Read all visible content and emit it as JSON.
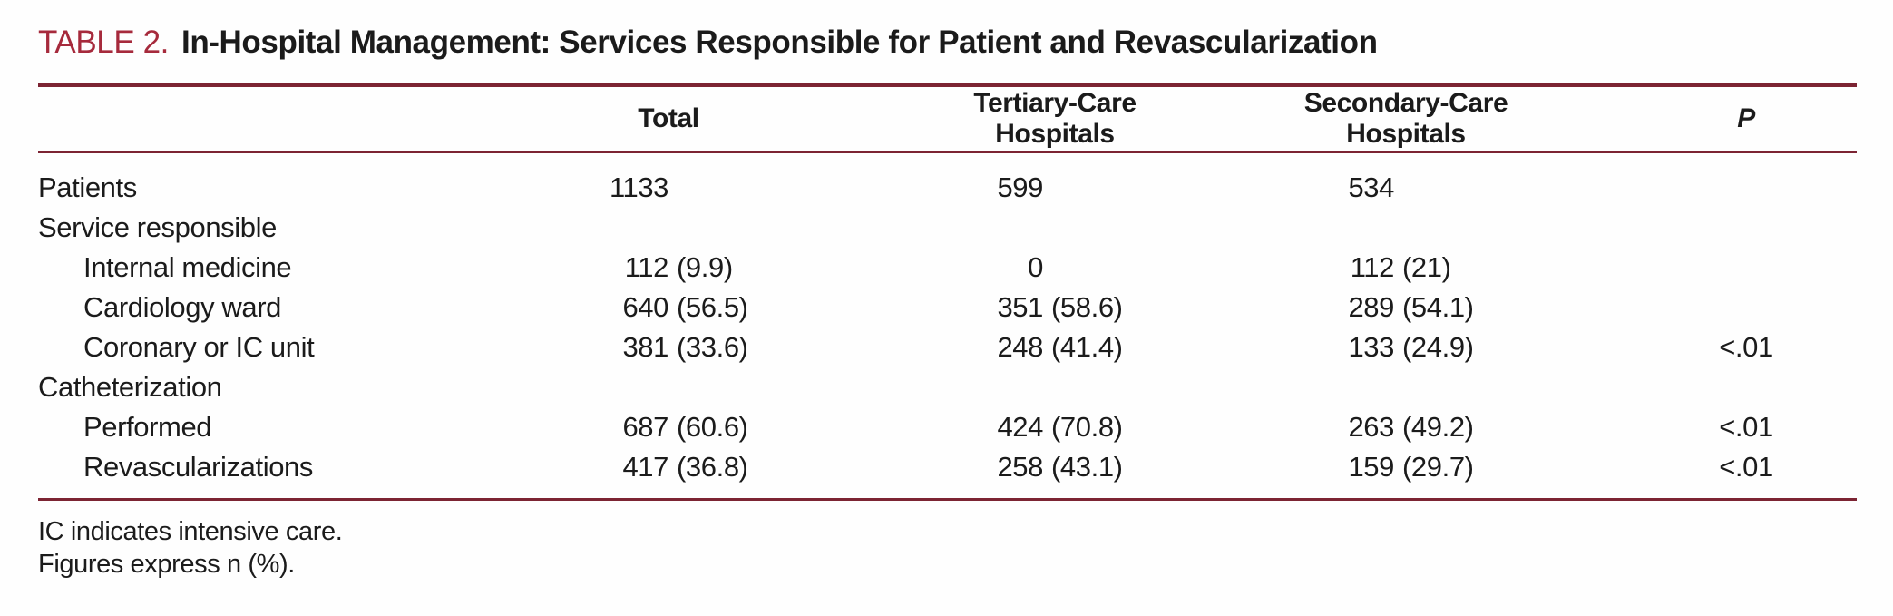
{
  "title": {
    "label": "TABLE 2.",
    "text": "In-Hospital Management: Services Responsible for Patient and Revascularization"
  },
  "colors": {
    "accent": "#a62a3c",
    "rule": "#7c2433",
    "text": "#1b1b1b"
  },
  "table": {
    "columns": {
      "total": "Total",
      "tertiary": "Tertiary-Care Hospitals",
      "secondary": "Secondary-Care Hospitals",
      "p": "P"
    },
    "rows": [
      {
        "label": "Patients",
        "total": {
          "n": "1133",
          "pct": ""
        },
        "tertiary": {
          "n": "599",
          "pct": ""
        },
        "secondary": {
          "n": "534",
          "pct": ""
        },
        "p": ""
      },
      {
        "label": "Service responsible",
        "total": {
          "n": "",
          "pct": ""
        },
        "tertiary": {
          "n": "",
          "pct": ""
        },
        "secondary": {
          "n": "",
          "pct": ""
        },
        "p": ""
      },
      {
        "label": "Internal medicine",
        "total": {
          "n": "112",
          "pct": "(9.9)"
        },
        "tertiary": {
          "n": "0",
          "pct": ""
        },
        "secondary": {
          "n": "112",
          "pct": "(21)"
        },
        "p": ""
      },
      {
        "label": "Cardiology ward",
        "total": {
          "n": "640",
          "pct": "(56.5)"
        },
        "tertiary": {
          "n": "351",
          "pct": "(58.6)"
        },
        "secondary": {
          "n": "289",
          "pct": "(54.1)"
        },
        "p": ""
      },
      {
        "label": "Coronary or IC unit",
        "total": {
          "n": "381",
          "pct": "(33.6)"
        },
        "tertiary": {
          "n": "248",
          "pct": "(41.4)"
        },
        "secondary": {
          "n": "133",
          "pct": "(24.9)"
        },
        "p": "<.01"
      },
      {
        "label": "Catheterization",
        "total": {
          "n": "",
          "pct": ""
        },
        "tertiary": {
          "n": "",
          "pct": ""
        },
        "secondary": {
          "n": "",
          "pct": ""
        },
        "p": ""
      },
      {
        "label": "Performed",
        "total": {
          "n": "687",
          "pct": "(60.6)"
        },
        "tertiary": {
          "n": "424",
          "pct": "(70.8)"
        },
        "secondary": {
          "n": "263",
          "pct": "(49.2)"
        },
        "p": "<.01"
      },
      {
        "label": "Revascularizations",
        "total": {
          "n": "417",
          "pct": "(36.8)"
        },
        "tertiary": {
          "n": "258",
          "pct": "(43.1)"
        },
        "secondary": {
          "n": "159",
          "pct": "(29.7)"
        },
        "p": "<.01"
      }
    ]
  },
  "footnotes": [
    "IC indicates intensive care.",
    "Figures express n (%)."
  ]
}
